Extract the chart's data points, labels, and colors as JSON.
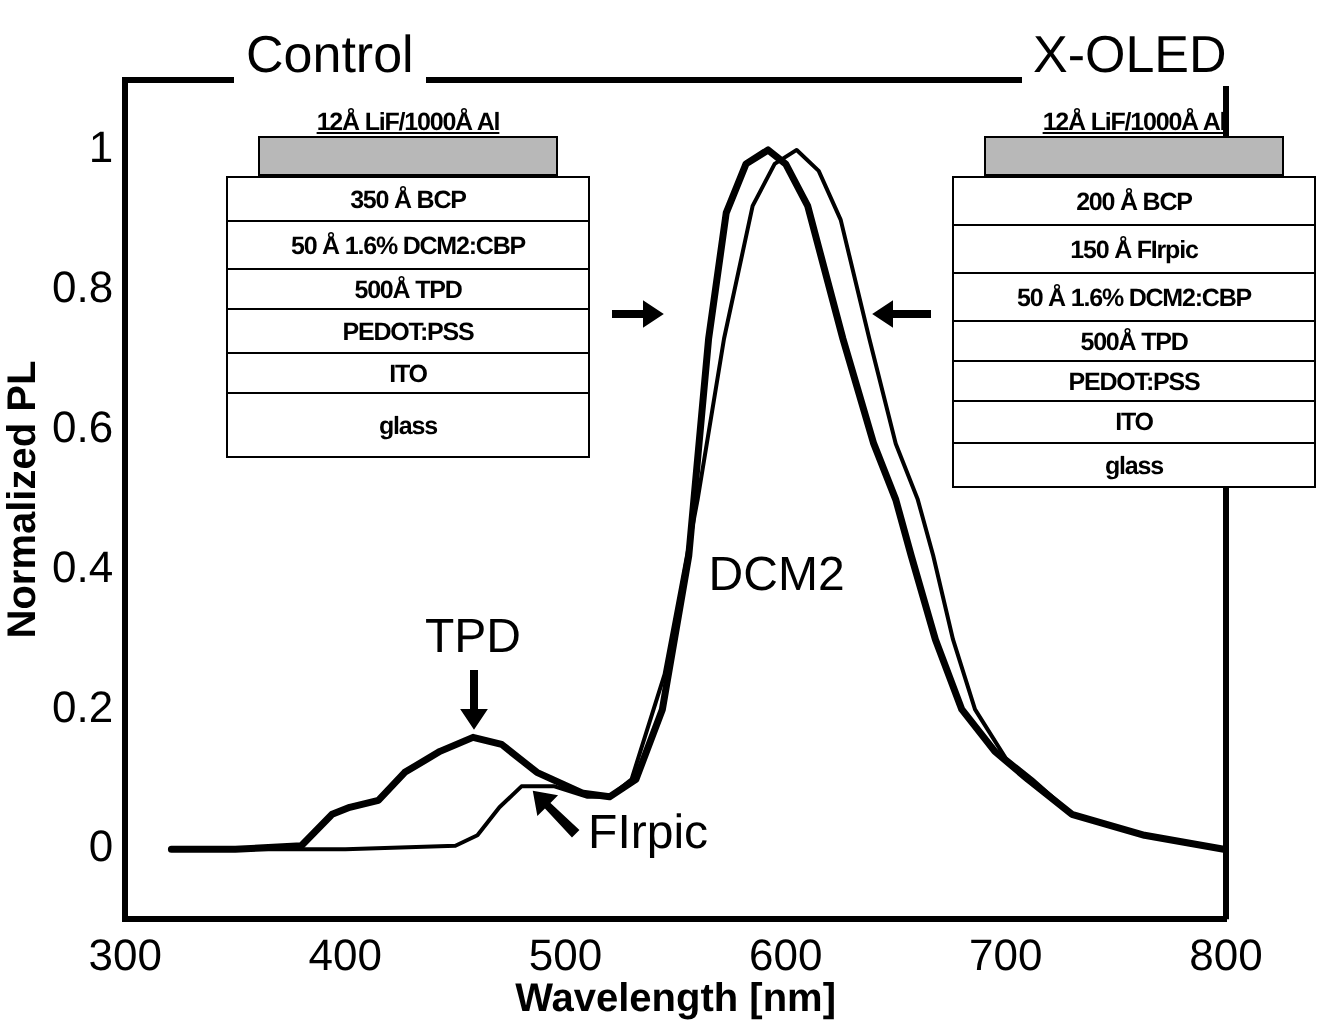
{
  "chart_data": {
    "type": "line",
    "xlabel": "Wavelength [nm]",
    "ylabel": "Normalized PL",
    "xlim": [
      300,
      800
    ],
    "xticks": [
      300,
      400,
      500,
      600,
      700,
      800
    ],
    "ylim": [
      -0.1,
      1.1
    ],
    "yticks": [
      0,
      0.2,
      0.4,
      0.6,
      0.8,
      1
    ],
    "marker": "none",
    "line_style": "solid",
    "series": [
      {
        "color": "#000000",
        "x": [
          321,
          350,
          380,
          394,
          402,
          415,
          427,
          443,
          458,
          471,
          487,
          508,
          520,
          532,
          544,
          556,
          565,
          573,
          582,
          592,
          600,
          610,
          626,
          640,
          650,
          657,
          668,
          680,
          695,
          710,
          730,
          763,
          799
        ],
        "values": [
          0,
          0,
          0.005,
          0.05,
          0.06,
          0.07,
          0.11,
          0.14,
          0.16,
          0.15,
          0.11,
          0.08,
          0.075,
          0.1,
          0.2,
          0.42,
          0.73,
          0.91,
          0.98,
          1.0,
          0.98,
          0.92,
          0.73,
          0.58,
          0.5,
          0.42,
          0.3,
          0.2,
          0.14,
          0.1,
          0.05,
          0.02,
          0
        ]
      },
      {
        "color": "#000000",
        "x": [
          321,
          400,
          450,
          460,
          470,
          480,
          495,
          510,
          520,
          530,
          545,
          560,
          572,
          585,
          595,
          605,
          615,
          625,
          638,
          650,
          660,
          667,
          676,
          686,
          700,
          712,
          730,
          763,
          799
        ],
        "values": [
          0,
          0,
          0.005,
          0.02,
          0.06,
          0.09,
          0.09,
          0.075,
          0.075,
          0.1,
          0.25,
          0.5,
          0.73,
          0.92,
          0.98,
          1.0,
          0.97,
          0.9,
          0.73,
          0.58,
          0.5,
          0.42,
          0.3,
          0.2,
          0.13,
          0.1,
          0.05,
          0.02,
          0
        ]
      }
    ],
    "annotations": [
      "Control",
      "X-OLED",
      "12Å LiF/1000Å Al",
      "350 Å BCP",
      "50 Å 1.6% DCM2:CBP",
      "500Å TPD",
      "PEDOT:PSS",
      "ITO",
      "glass",
      "12Å LiF/1000Å Al",
      "200 Å BCP",
      "150 Å FIrpic",
      "50 Å 1.6% DCM2:CBP",
      "500Å TPD",
      "PEDOT:PSS",
      "ITO",
      "glass",
      {
        "text": "TPD",
        "x": 458,
        "y": 0.16
      },
      {
        "text": "FIrpic",
        "x": 483,
        "y": 0.09
      },
      "DCM2"
    ]
  }
}
